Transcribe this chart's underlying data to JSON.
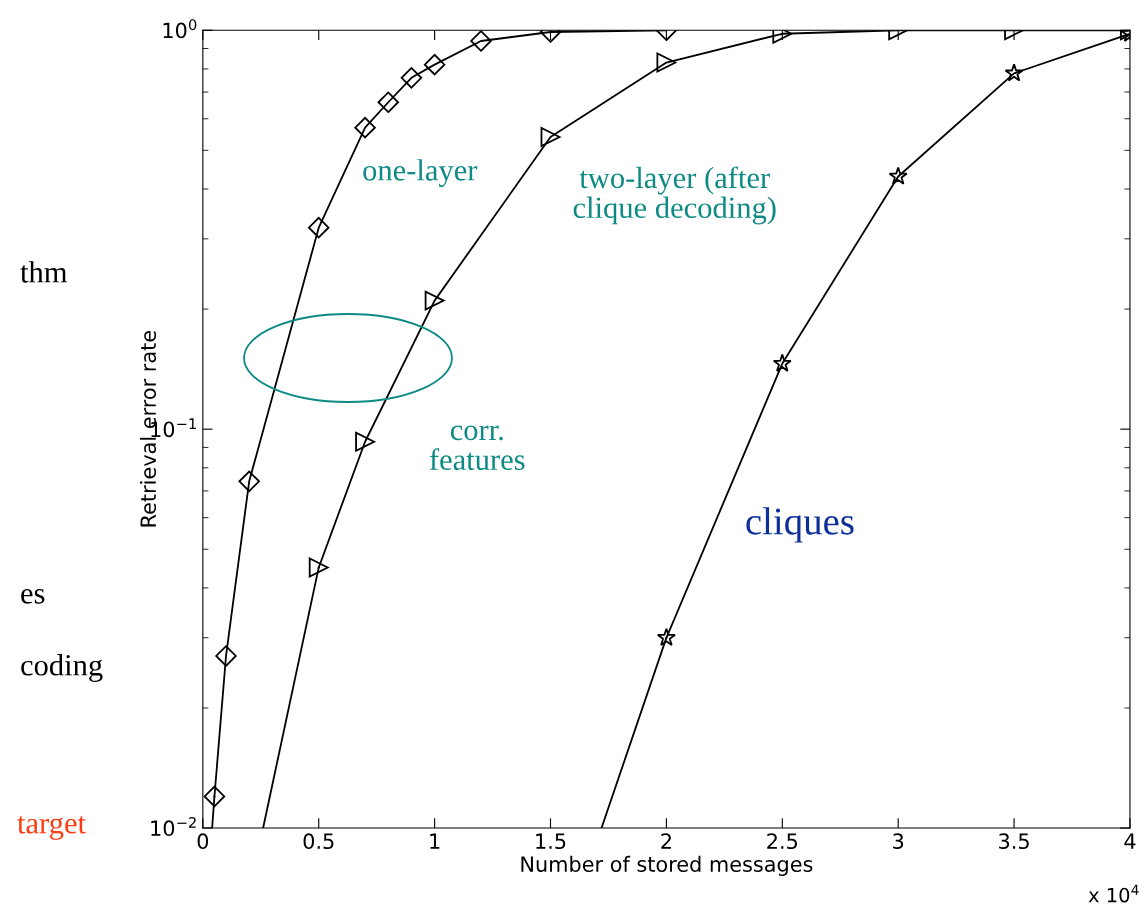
{
  "chart_data": {
    "type": "line",
    "xlabel": "Number of stored messages",
    "ylabel": "Retrieval error rate",
    "log": "y",
    "xlim": [
      0,
      4
    ],
    "xticks": [
      0,
      0.5,
      1,
      1.5,
      2,
      2.5,
      3,
      3.5,
      4
    ],
    "ylim": [
      0.01,
      1
    ],
    "yticks": [
      {
        "value": 0.01,
        "label": "10$^{−2}$"
      },
      {
        "value": 0.1,
        "label": "10$^{−1}$"
      },
      {
        "value": 1,
        "label": "10$^{0}$"
      }
    ],
    "grid": false,
    "series": [
      {
        "color": "#000000",
        "marker": "diamond",
        "x": [
          0.05,
          0.1,
          0.2,
          0.5,
          0.7,
          0.8,
          0.9,
          1.0,
          1.2,
          1.5,
          2.0
        ],
        "values": [
          0.012,
          0.027,
          0.074,
          0.32,
          0.57,
          0.66,
          0.76,
          0.82,
          0.94,
          0.99,
          1.0
        ]
      },
      {
        "color": "#000000",
        "marker": "triangle",
        "x": [
          0.5,
          0.7,
          1.0,
          1.5,
          2.0,
          2.5,
          3.0,
          3.5,
          4.0
        ],
        "values": [
          0.045,
          0.093,
          0.21,
          0.54,
          0.83,
          0.98,
          1.0,
          1.0,
          1.0
        ]
      },
      {
        "color": "#000000",
        "marker": "star",
        "x": [
          2.0,
          2.5,
          3.0,
          3.5,
          4.0
        ],
        "values": [
          0.03,
          0.146,
          0.43,
          0.78,
          0.98
        ]
      },
      {
        "color": "#000000",
        "marker": "none",
        "x": [
          0.04,
          0.05
        ],
        "values": [
          0.01,
          0.012
        ]
      },
      {
        "color": "#000000",
        "marker": "none",
        "x": [
          0.26,
          0.5
        ],
        "values": [
          0.01,
          0.045
        ]
      },
      {
        "color": "#000000",
        "marker": "none",
        "x": [
          1.72,
          2.0
        ],
        "values": [
          0.01,
          0.03
        ]
      }
    ],
    "annotations": [
      "one-layer",
      "two-layer (after\nclique decoding)",
      "corr.\nfeatures",
      "cliques",
      "x 10$^{4}$",
      "thm",
      "es",
      "coding",
      "target"
    ]
  }
}
